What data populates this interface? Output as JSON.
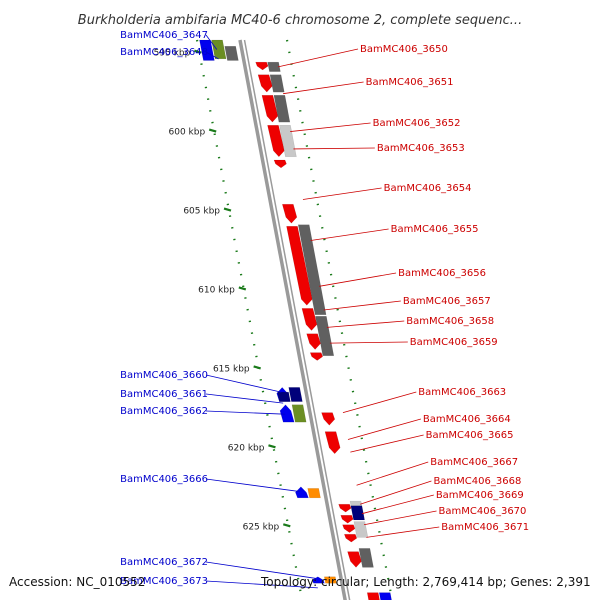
{
  "title": "Burkholderia ambifaria MC40-6 chromosome 2, complete sequenc...",
  "footer": {
    "accession": "Accession: NC_010552",
    "summary": "Topology: circular; Length: 2,769,414 bp; Genes: 2,391"
  },
  "colors": {
    "left_label": "#0000cc",
    "right_label": "#cc0000",
    "backbone": "#9a9a9a",
    "tick": "#1a7a1a",
    "gene_red": "#ee0000",
    "gene_blue": "#0000ee",
    "gene_navy": "#00007a",
    "gene_orange": "#ff8c00",
    "gene_olive": "#6b8e23",
    "track_dark": "#606060",
    "track_light": "#c8c8c8"
  },
  "kbp_ticks": [
    {
      "kb": 595,
      "label": "595 kbp"
    },
    {
      "kb": 600,
      "label": "600 kbp"
    },
    {
      "kb": 605,
      "label": "605 kbp"
    },
    {
      "kb": 610,
      "label": "610 kbp"
    },
    {
      "kb": 615,
      "label": "615 kbp"
    },
    {
      "kb": 620,
      "label": "620 kbp"
    },
    {
      "kb": 625,
      "label": "625 kbp"
    }
  ],
  "left_labels": [
    {
      "text": "BamMC406_3647",
      "kb": 594.8
    },
    {
      "text": "BamMC406_3648",
      "kb": 595.4
    },
    {
      "text": "BamMC406_3660",
      "kb": 616.5
    },
    {
      "text": "BamMC406_3661",
      "kb": 617.2
    },
    {
      "text": "BamMC406_3662",
      "kb": 617.9
    },
    {
      "text": "BamMC406_3666",
      "kb": 622.8
    },
    {
      "text": "BamMC406_3672",
      "kb": 628.3
    },
    {
      "text": "BamMC406_3673",
      "kb": 628.9
    }
  ],
  "right_labels": [
    {
      "text": "BamMC406_3650",
      "kb": 595.9
    },
    {
      "text": "BamMC406_3651",
      "kb": 597.6
    },
    {
      "text": "BamMC406_3652",
      "kb": 600.0
    },
    {
      "text": "BamMC406_3653",
      "kb": 601.1
    },
    {
      "text": "BamMC406_3654",
      "kb": 604.3
    },
    {
      "text": "BamMC406_3655",
      "kb": 606.9
    },
    {
      "text": "BamMC406_3656",
      "kb": 609.8
    },
    {
      "text": "BamMC406_3657",
      "kb": 611.3
    },
    {
      "text": "BamMC406_3658",
      "kb": 612.4
    },
    {
      "text": "BamMC406_3659",
      "kb": 613.4
    },
    {
      "text": "BamMC406_3663",
      "kb": 617.8
    },
    {
      "text": "BamMC406_3664",
      "kb": 619.5
    },
    {
      "text": "BamMC406_3665",
      "kb": 620.3
    },
    {
      "text": "BamMC406_3667",
      "kb": 622.4
    },
    {
      "text": "BamMC406_3668",
      "kb": 623.6
    },
    {
      "text": "BamMC406_3669",
      "kb": 624.2
    },
    {
      "text": "BamMC406_3670",
      "kb": 624.9
    },
    {
      "text": "BamMC406_3671",
      "kb": 625.7
    }
  ],
  "genes": [
    {
      "track": -2,
      "kb0": 594.2,
      "kb1": 595.4,
      "color": "gene_olive",
      "dir": 0
    },
    {
      "track": -3,
      "kb0": 594.2,
      "kb1": 595.5,
      "color": "gene_blue",
      "dir": 0
    },
    {
      "track": -1,
      "kb0": 594.6,
      "kb1": 595.5,
      "color": "track_dark",
      "dir": 0
    },
    {
      "track": 1,
      "kb0": 595.6,
      "kb1": 596.1,
      "color": "gene_red",
      "dir": 1
    },
    {
      "track": 2,
      "kb0": 595.6,
      "kb1": 596.2,
      "color": "track_dark",
      "dir": 0
    },
    {
      "track": 1,
      "kb0": 596.4,
      "kb1": 597.5,
      "color": "gene_red",
      "dir": 1
    },
    {
      "track": 2,
      "kb0": 596.4,
      "kb1": 597.5,
      "color": "track_dark",
      "dir": 0
    },
    {
      "track": 1,
      "kb0": 597.7,
      "kb1": 599.4,
      "color": "gene_red",
      "dir": 1
    },
    {
      "track": 2,
      "kb0": 597.7,
      "kb1": 599.4,
      "color": "track_dark",
      "dir": 0
    },
    {
      "track": 1,
      "kb0": 599.6,
      "kb1": 601.6,
      "color": "gene_red",
      "dir": 1
    },
    {
      "track": 2,
      "kb0": 599.6,
      "kb1": 601.6,
      "color": "track_light",
      "dir": 0
    },
    {
      "track": 1,
      "kb0": 601.8,
      "kb1": 602.3,
      "color": "gene_red",
      "dir": 1
    },
    {
      "track": 1,
      "kb0": 604.6,
      "kb1": 605.8,
      "color": "gene_red",
      "dir": 1
    },
    {
      "track": 1,
      "kb0": 606.0,
      "kb1": 611.0,
      "color": "gene_red",
      "dir": 1
    },
    {
      "track": 2,
      "kb0": 605.9,
      "kb1": 611.6,
      "color": "track_dark",
      "dir": 0
    },
    {
      "track": 1,
      "kb0": 611.2,
      "kb1": 612.6,
      "color": "gene_red",
      "dir": 1
    },
    {
      "track": 2,
      "kb0": 611.7,
      "kb1": 614.2,
      "color": "track_dark",
      "dir": 0
    },
    {
      "track": 1,
      "kb0": 612.8,
      "kb1": 613.8,
      "color": "gene_red",
      "dir": 1
    },
    {
      "track": 1,
      "kb0": 614.0,
      "kb1": 614.5,
      "color": "gene_red",
      "dir": 1
    },
    {
      "track": -1,
      "kb0": 616.2,
      "kb1": 617.1,
      "color": "gene_navy",
      "dir": 0
    },
    {
      "track": -2,
      "kb0": 616.2,
      "kb1": 617.1,
      "color": "gene_blue",
      "dir": -1
    },
    {
      "track": -2,
      "kb0": 616.5,
      "kb1": 617.1,
      "color": "gene_navy",
      "dir": 0
    },
    {
      "track": -1,
      "kb0": 617.3,
      "kb1": 618.4,
      "color": "gene_olive",
      "dir": 0
    },
    {
      "track": -2,
      "kb0": 617.3,
      "kb1": 618.4,
      "color": "gene_blue",
      "dir": -1
    },
    {
      "track": 1,
      "kb0": 617.8,
      "kb1": 618.6,
      "color": "gene_red",
      "dir": 1
    },
    {
      "track": 1,
      "kb0": 619.0,
      "kb1": 620.4,
      "color": "gene_red",
      "dir": 1
    },
    {
      "track": -1,
      "kb0": 622.6,
      "kb1": 623.2,
      "color": "gene_orange",
      "dir": 0
    },
    {
      "track": -2,
      "kb0": 622.5,
      "kb1": 623.2,
      "color": "gene_blue",
      "dir": -1
    },
    {
      "track": 1,
      "kb0": 623.6,
      "kb1": 624.1,
      "color": "gene_red",
      "dir": 1
    },
    {
      "track": 2,
      "kb0": 623.4,
      "kb1": 624.5,
      "color": "track_light",
      "dir": 0
    },
    {
      "track": 2,
      "kb0": 623.7,
      "kb1": 624.6,
      "color": "gene_navy",
      "dir": 0
    },
    {
      "track": 1,
      "kb0": 624.3,
      "kb1": 624.8,
      "color": "gene_red",
      "dir": 1
    },
    {
      "track": 1,
      "kb0": 624.9,
      "kb1": 625.4,
      "color": "gene_red",
      "dir": 1
    },
    {
      "track": 2,
      "kb0": 624.7,
      "kb1": 625.7,
      "color": "track_light",
      "dir": 0
    },
    {
      "track": 1,
      "kb0": 625.5,
      "kb1": 626.0,
      "color": "gene_red",
      "dir": 1
    },
    {
      "track": 1,
      "kb0": 626.6,
      "kb1": 627.6,
      "color": "gene_red",
      "dir": 1
    },
    {
      "track": 2,
      "kb0": 626.4,
      "kb1": 627.6,
      "color": "track_dark",
      "dir": 0
    },
    {
      "track": -1,
      "kb0": 628.2,
      "kb1": 628.6,
      "color": "gene_orange",
      "dir": 0
    },
    {
      "track": -2,
      "kb0": 628.2,
      "kb1": 628.6,
      "color": "gene_blue",
      "dir": -1
    },
    {
      "track": 2,
      "kb0": 629.2,
      "kb1": 630.0,
      "color": "gene_red",
      "dir": 0
    },
    {
      "track": 3,
      "kb0": 629.2,
      "kb1": 630.0,
      "color": "gene_blue",
      "dir": 0
    }
  ]
}
